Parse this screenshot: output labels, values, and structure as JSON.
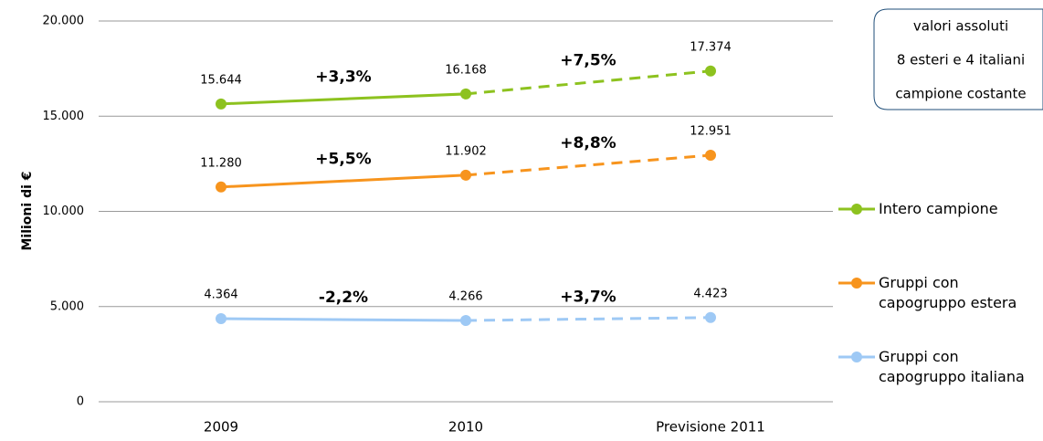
{
  "chart_data": {
    "type": "line",
    "y_label": "Milioni di €",
    "categories": [
      "2009",
      "2010",
      "Previsione 2011"
    ],
    "segment_styles": [
      "solid",
      "dashed"
    ],
    "series": [
      {
        "name": "Intero campione",
        "color": "#8dc21f",
        "values": [
          15644,
          16168,
          17374
        ],
        "value_labels": [
          "15.644",
          "16.168",
          "17.374"
        ],
        "changes": [
          "+3,3%",
          "+7,5%"
        ]
      },
      {
        "name": "Gruppi con capogruppo estera",
        "color": "#f7941d",
        "values": [
          11280,
          11902,
          12951
        ],
        "value_labels": [
          "11.280",
          "11.902",
          "12.951"
        ],
        "changes": [
          "+5,5%",
          "+8,8%"
        ]
      },
      {
        "name": "Gruppi con capogruppo italiana",
        "color": "#9ec9f5",
        "values": [
          4364,
          4266,
          4423
        ],
        "value_labels": [
          "4.364",
          "4.266",
          "4.423"
        ],
        "changes": [
          "-2,2%",
          "+3,7%"
        ]
      }
    ],
    "ylim": [
      0,
      20000
    ],
    "yticks": [
      0,
      {
        "value": 5000,
        "label": "5.000"
      },
      {
        "value": 10000,
        "label": "10.000"
      },
      {
        "value": 15000,
        "label": "15.000"
      },
      {
        "value": 20000,
        "label": "20.000"
      }
    ],
    "grid": true,
    "legend": "right",
    "note": [
      "valori assoluti",
      "8 esteri e 4 italiani",
      "campione costante"
    ]
  }
}
